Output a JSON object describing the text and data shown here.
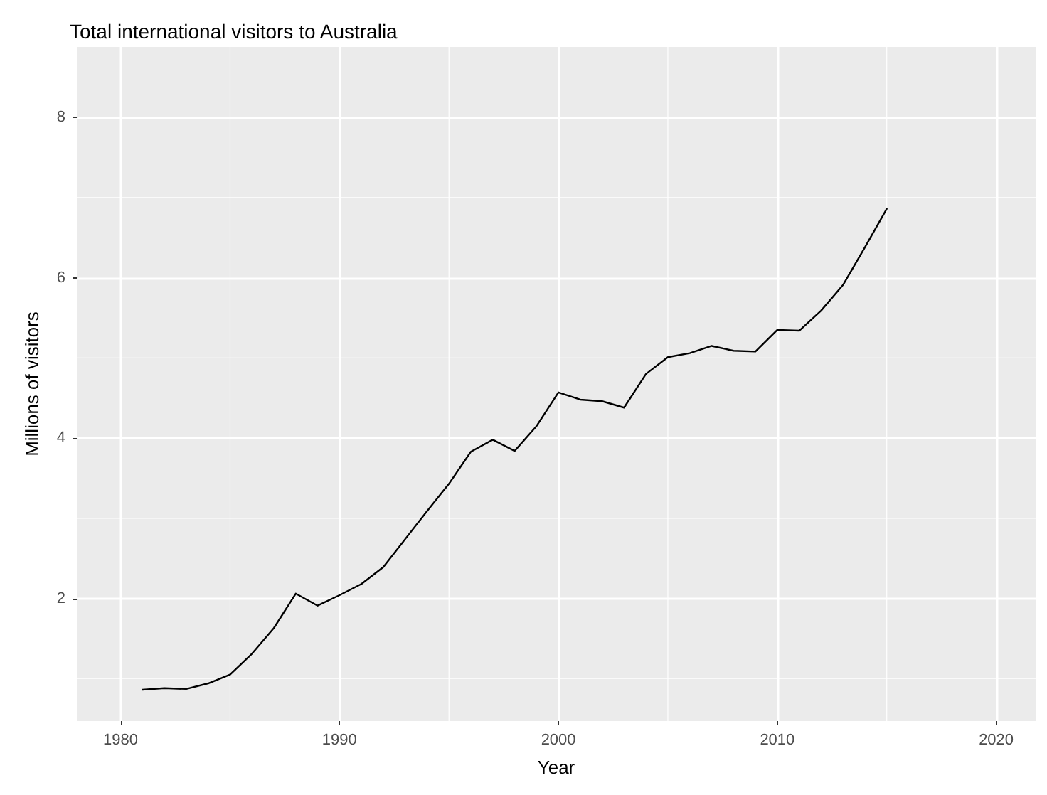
{
  "chart_data": {
    "type": "line",
    "title": "Total international visitors to Australia",
    "xlabel": "Year",
    "ylabel": "Millions of visitors",
    "x": [
      1981,
      1982,
      1983,
      1984,
      1985,
      1986,
      1987,
      1988,
      1989,
      1990,
      1991,
      1992,
      1993,
      1994,
      1995,
      1996,
      1997,
      1998,
      1999,
      2000,
      2001,
      2002,
      2003,
      2004,
      2005,
      2006,
      2007,
      2008,
      2009,
      2010,
      2011,
      2012,
      2013,
      2014,
      2015
    ],
    "series": [
      {
        "color": "#000000",
        "values": [
          0.86,
          0.88,
          0.87,
          0.94,
          1.05,
          1.31,
          1.63,
          2.06,
          1.91,
          2.04,
          2.18,
          2.39,
          2.74,
          3.09,
          3.43,
          3.83,
          3.98,
          3.84,
          4.15,
          4.57,
          4.48,
          4.46,
          4.38,
          4.8,
          5.01,
          5.06,
          5.15,
          5.09,
          5.08,
          5.35,
          5.34,
          5.59,
          5.91,
          6.38,
          6.86
        ]
      }
    ],
    "xlim": [
      1978,
      2021.8
    ],
    "ylim": [
      0.47,
      8.88
    ],
    "xticks": [
      1980,
      1990,
      2000,
      2010,
      2020
    ],
    "yticks": [
      2,
      4,
      6,
      8
    ],
    "grid": true,
    "marker": "none",
    "line_style": "solid"
  }
}
